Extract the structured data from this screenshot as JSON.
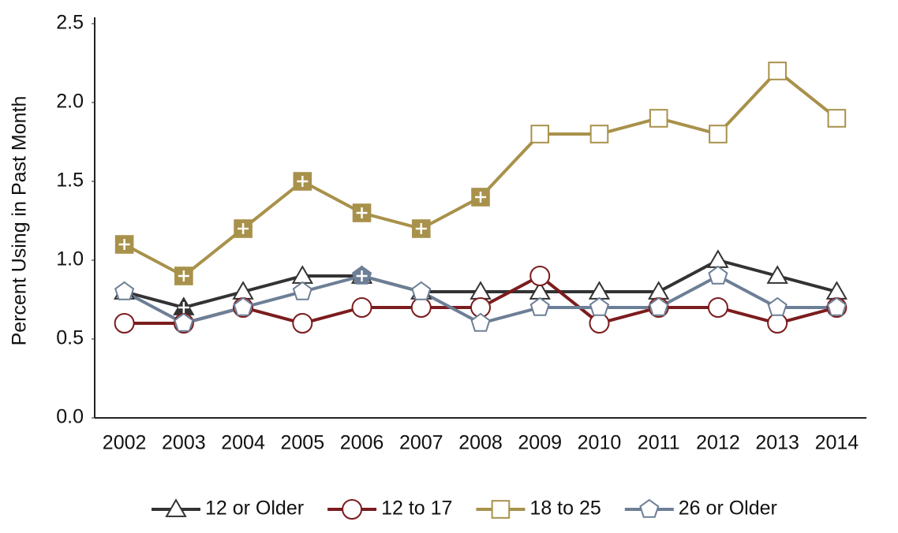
{
  "chart_data": {
    "type": "line",
    "y_label": "Percent Using in Past Month",
    "categories": [
      "2002",
      "2003",
      "2004",
      "2005",
      "2006",
      "2007",
      "2008",
      "2009",
      "2010",
      "2011",
      "2012",
      "2013",
      "2014"
    ],
    "ylim": [
      0,
      2.5
    ],
    "yticks": [
      {
        "value": 0,
        "label": "0.0"
      },
      0.5,
      {
        "value": 1,
        "label": "1.0"
      },
      1.5,
      {
        "value": 2,
        "label": "2.0"
      },
      2.5
    ],
    "legend": "bottom",
    "series": [
      {
        "name": "12 or Older",
        "color": "#333333",
        "marker": "triangle",
        "values": [
          0.8,
          0.7,
          0.8,
          0.9,
          0.9,
          0.8,
          0.8,
          0.8,
          0.8,
          0.8,
          1.0,
          0.9,
          0.8
        ],
        "significant": [
          false,
          true,
          false,
          false,
          false,
          false,
          false,
          false,
          false,
          false,
          false,
          false,
          false
        ]
      },
      {
        "name": "12 to 17",
        "color": "#7b1c1e",
        "marker": "circle",
        "values": [
          0.6,
          0.6,
          0.7,
          0.6,
          0.7,
          0.7,
          0.7,
          0.9,
          0.6,
          0.7,
          0.7,
          0.6,
          0.7
        ],
        "significant": [
          false,
          false,
          false,
          false,
          false,
          false,
          false,
          false,
          false,
          false,
          false,
          false,
          false
        ]
      },
      {
        "name": "18 to 25",
        "color": "#a8914a",
        "marker": "square",
        "values": [
          1.1,
          0.9,
          1.2,
          1.5,
          1.3,
          1.2,
          1.4,
          1.8,
          1.8,
          1.9,
          1.8,
          2.2,
          1.9
        ],
        "significant": [
          true,
          true,
          true,
          true,
          true,
          true,
          true,
          false,
          false,
          false,
          false,
          false,
          false
        ]
      },
      {
        "name": "26 or Older",
        "color": "#6d7f96",
        "marker": "pentagon",
        "values": [
          0.8,
          0.6,
          0.7,
          0.8,
          0.9,
          0.8,
          0.6,
          0.7,
          0.7,
          0.7,
          0.9,
          0.7,
          0.7
        ],
        "significant": [
          false,
          false,
          false,
          false,
          true,
          false,
          false,
          false,
          false,
          false,
          false,
          false,
          false
        ]
      }
    ]
  }
}
